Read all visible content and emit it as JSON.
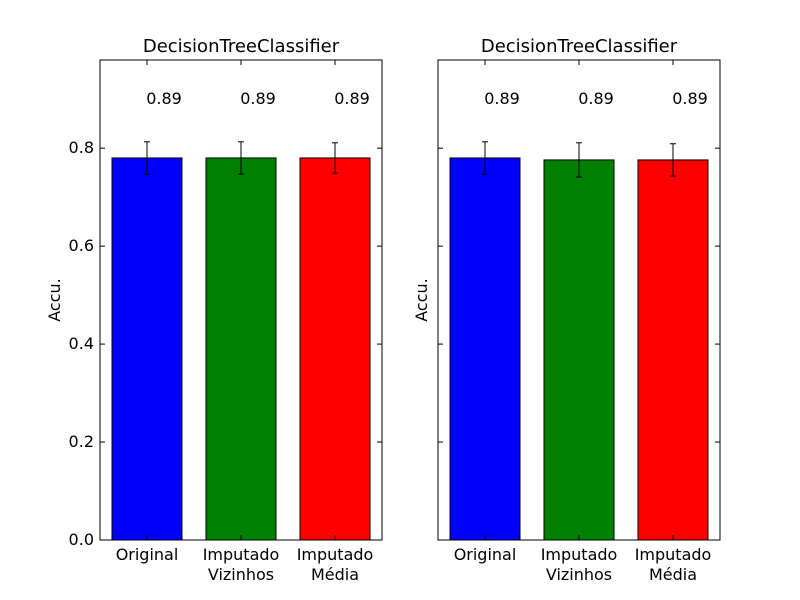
{
  "chart_data": [
    {
      "type": "bar",
      "title": "DecisionTreeClassifier",
      "xlabel": "",
      "ylabel": "Accu.",
      "ylim": [
        0,
        0.98
      ],
      "yticks": [
        "0.0",
        "0.2",
        "0.4",
        "0.6",
        "0.8"
      ],
      "ytick_values": [
        0,
        0.2,
        0.4,
        0.6,
        0.8
      ],
      "show_ytick_labels": true,
      "grid": false,
      "categories": [
        [
          "Original"
        ],
        [
          "Imputado",
          "Vizinhos"
        ],
        [
          "Imputado",
          "Média"
        ]
      ],
      "values": [
        0.78,
        0.78,
        0.78
      ],
      "errors": [
        0.033,
        0.033,
        0.031
      ],
      "annotations": [
        "0.89",
        "0.89",
        "0.89"
      ],
      "annotation_y": 0.9,
      "colors": [
        "#0000ff",
        "#008000",
        "#ff0000"
      ]
    },
    {
      "type": "bar",
      "title": "DecisionTreeClassifier",
      "xlabel": "",
      "ylabel": "Accu.",
      "ylim": [
        0,
        0.98
      ],
      "yticks": [
        "0.0",
        "0.2",
        "0.4",
        "0.6",
        "0.8"
      ],
      "ytick_values": [
        0,
        0.2,
        0.4,
        0.6,
        0.8
      ],
      "show_ytick_labels": false,
      "grid": false,
      "categories": [
        [
          "Original"
        ],
        [
          "Imputado",
          "Vizinhos"
        ],
        [
          "Imputado",
          "Média"
        ]
      ],
      "values": [
        0.78,
        0.776,
        0.776
      ],
      "errors": [
        0.033,
        0.035,
        0.033
      ],
      "annotations": [
        "0.89",
        "0.89",
        "0.89"
      ],
      "annotation_y": 0.9,
      "colors": [
        "#0000ff",
        "#008000",
        "#ff0000"
      ]
    }
  ]
}
